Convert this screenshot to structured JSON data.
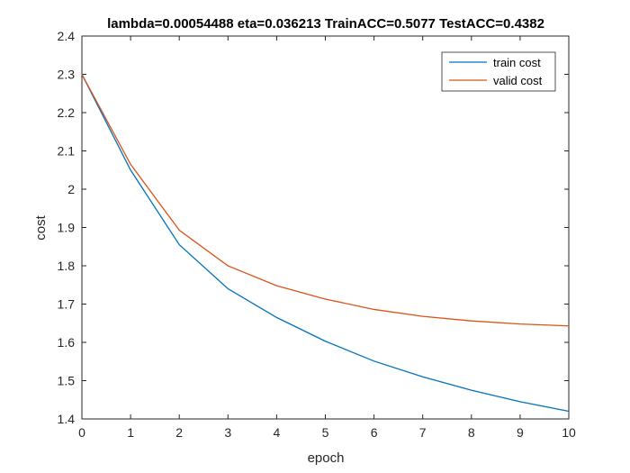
{
  "chart_data": {
    "type": "line",
    "title": "lambda=0.00054488 eta=0.036213 TrainACC=0.5077 TestACC=0.4382",
    "xlabel": "epoch",
    "ylabel": "cost",
    "xlim": [
      0,
      10
    ],
    "ylim": [
      1.4,
      2.4
    ],
    "x_ticks": [
      "0",
      "1",
      "2",
      "3",
      "4",
      "5",
      "6",
      "7",
      "8",
      "9",
      "10"
    ],
    "y_ticks": [
      "1.4",
      "1.5",
      "1.6",
      "1.7",
      "1.8",
      "1.9",
      "2",
      "2.1",
      "2.2",
      "2.3",
      "2.4"
    ],
    "grid": false,
    "legend_position": "top-right",
    "x": [
      0,
      1,
      2,
      3,
      4,
      5,
      6,
      7,
      8,
      9,
      10
    ],
    "series": [
      {
        "name": "train cost",
        "color": "#0072BD",
        "values": [
          2.3,
          2.05,
          1.855,
          1.74,
          1.665,
          1.603,
          1.551,
          1.51,
          1.475,
          1.445,
          1.42
        ]
      },
      {
        "name": "valid cost",
        "color": "#D95319",
        "values": [
          2.3,
          2.065,
          1.893,
          1.8,
          1.748,
          1.713,
          1.686,
          1.668,
          1.656,
          1.648,
          1.643
        ]
      }
    ]
  }
}
